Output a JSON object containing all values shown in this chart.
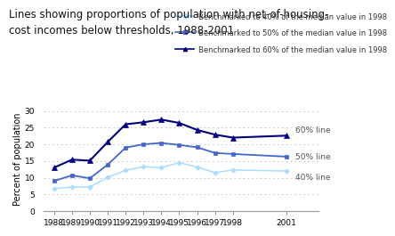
{
  "title_line1": "Lines showing proportions of population with net-of-housing-",
  "title_line2": "cost incomes below thresholds, 1988-2001",
  "ylabel": "Percent of population",
  "years": [
    1988,
    1989,
    1990,
    1991,
    1992,
    1993,
    1994,
    1995,
    1996,
    1997,
    1998,
    2001
  ],
  "line40": [
    6.7,
    7.2,
    7.2,
    10.1,
    12.2,
    13.3,
    13.0,
    14.5,
    13.2,
    11.5,
    12.3,
    12.0
  ],
  "line50": [
    9.0,
    10.7,
    9.8,
    13.9,
    19.0,
    20.0,
    20.4,
    19.8,
    19.1,
    17.4,
    17.1,
    16.3
  ],
  "line60": [
    13.0,
    15.4,
    15.1,
    20.7,
    26.0,
    26.6,
    27.4,
    26.4,
    24.3,
    22.9,
    22.0,
    22.6
  ],
  "color40": "#aaddff",
  "color50": "#4466cc",
  "color60": "#000080",
  "legend40": "Benchmarked to 40% of the median value in 1998",
  "legend50": "Benchmarked to 50% of the median value in 1998",
  "legend60": "Benchmarked to 60% of the median value in 1998",
  "label40": "40% line",
  "label50": "50% line",
  "label60": "60% line",
  "ylim": [
    0,
    31
  ],
  "yticks": [
    0,
    5,
    10,
    15,
    20,
    25,
    30
  ],
  "xlim_left": 1987.4,
  "xlim_right": 2002.8,
  "bg_color": "#ffffff",
  "grid_color": "#cccccc",
  "title_fontsize": 8.5,
  "legend_fontsize": 6.0,
  "tick_fontsize": 6.5,
  "ylabel_fontsize": 7.0,
  "label_fontsize": 6.5
}
